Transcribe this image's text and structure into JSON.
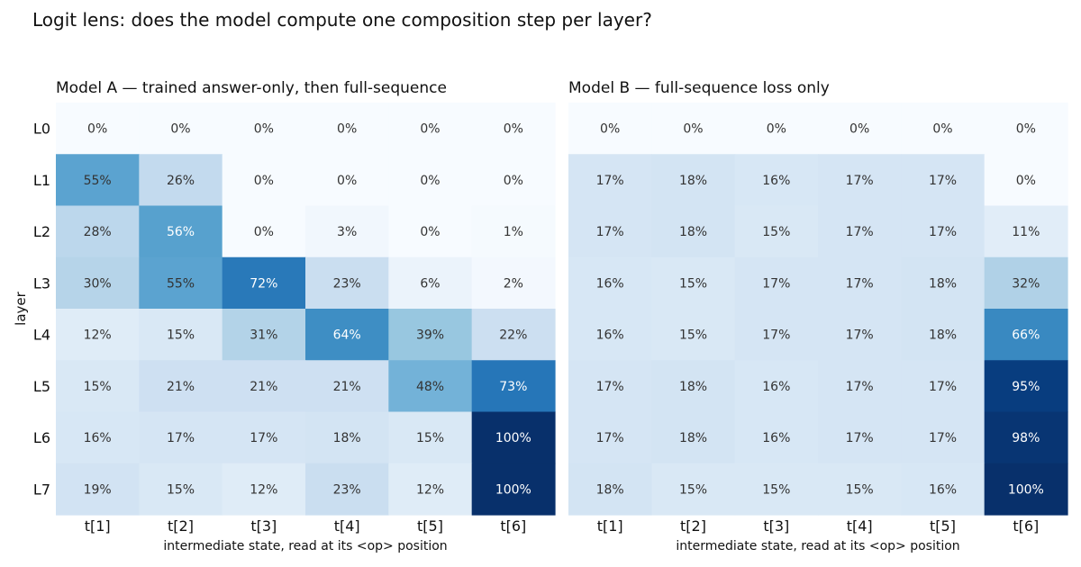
{
  "title": "Logit lens: does the model compute one composition step per layer?",
  "chart_data": [
    {
      "type": "heatmap",
      "title": "Model A — trained answer-only, then full-sequence",
      "xlabel": "intermediate state, read at its <op> position",
      "ylabel": "layer",
      "columns": [
        "t[1]",
        "t[2]",
        "t[3]",
        "t[4]",
        "t[5]",
        "t[6]"
      ],
      "rows": [
        "L0",
        "L1",
        "L2",
        "L3",
        "L4",
        "L5",
        "L6",
        "L7"
      ],
      "values": [
        [
          0,
          0,
          0,
          0,
          0,
          0
        ],
        [
          55,
          26,
          0,
          0,
          0,
          0
        ],
        [
          28,
          56,
          0,
          3,
          0,
          1
        ],
        [
          30,
          55,
          72,
          23,
          6,
          2
        ],
        [
          12,
          15,
          31,
          64,
          39,
          22
        ],
        [
          15,
          21,
          21,
          21,
          48,
          73
        ],
        [
          16,
          17,
          17,
          18,
          15,
          100
        ],
        [
          19,
          15,
          12,
          23,
          12,
          100
        ]
      ],
      "value_format": "percent",
      "color_range": [
        0,
        100
      ],
      "colormap": "Blues"
    },
    {
      "type": "heatmap",
      "title": "Model B — full-sequence loss only",
      "xlabel": "intermediate state, read at its <op> position",
      "ylabel": "",
      "columns": [
        "t[1]",
        "t[2]",
        "t[3]",
        "t[4]",
        "t[5]",
        "t[6]"
      ],
      "rows": [
        "L0",
        "L1",
        "L2",
        "L3",
        "L4",
        "L5",
        "L6",
        "L7"
      ],
      "values": [
        [
          0,
          0,
          0,
          0,
          0,
          0
        ],
        [
          17,
          18,
          16,
          17,
          17,
          0
        ],
        [
          17,
          18,
          15,
          17,
          17,
          11
        ],
        [
          16,
          15,
          17,
          17,
          18,
          32
        ],
        [
          16,
          15,
          17,
          17,
          18,
          66
        ],
        [
          17,
          18,
          16,
          17,
          17,
          95
        ],
        [
          17,
          18,
          16,
          17,
          17,
          98
        ],
        [
          18,
          15,
          15,
          15,
          16,
          100
        ]
      ],
      "value_format": "percent",
      "color_range": [
        0,
        100
      ],
      "colormap": "Blues"
    }
  ]
}
